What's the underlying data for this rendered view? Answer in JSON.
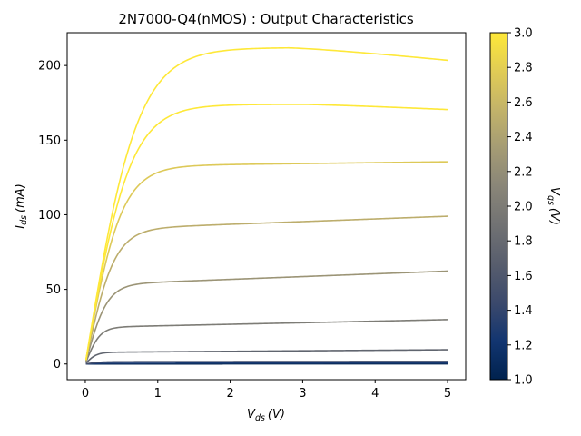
{
  "chart_data": {
    "type": "line",
    "title": "2N7000-Q4(nMOS) : Output Characteristics",
    "xlabel": {
      "base": "V",
      "sub": "ds",
      "unit": "(V)"
    },
    "ylabel": {
      "base": "I",
      "sub": "ds",
      "unit": "(mA)"
    },
    "xlim": [
      -0.25,
      5.25
    ],
    "ylim": [
      -10.5,
      222
    ],
    "xticks": [
      0,
      1,
      2,
      3,
      4,
      5
    ],
    "yticks": [
      0,
      50,
      100,
      150,
      200
    ],
    "grid": false,
    "colorbar": {
      "label": {
        "base": "V",
        "sub": "gs",
        "unit": "(V)"
      },
      "range": [
        1.0,
        3.0
      ],
      "ticks": [
        1.0,
        1.2,
        1.4,
        1.6,
        1.8,
        2.0,
        2.2,
        2.4,
        2.6,
        2.8,
        3.0
      ],
      "colormap": "cividis",
      "colors": [
        "#00224e",
        "#123570",
        "#3b496c",
        "#575d6d",
        "#707173",
        "#8a8678",
        "#a59c74",
        "#c3b369",
        "#e1cc55",
        "#fee838"
      ]
    },
    "series": [
      {
        "vgs": 1.0,
        "sat": 0.05,
        "knee": 0.2,
        "slope": 0.01,
        "drop": 0
      },
      {
        "vgs": 1.25,
        "sat": 0.5,
        "knee": 0.2,
        "slope": 0.03,
        "drop": 0
      },
      {
        "vgs": 1.5,
        "sat": 1.5,
        "knee": 0.2,
        "slope": 0.05,
        "drop": 0
      },
      {
        "vgs": 1.75,
        "sat": 7.8,
        "knee": 0.15,
        "slope": 0.35,
        "drop": 0
      },
      {
        "vgs": 2.0,
        "sat": 24.5,
        "knee": 0.2,
        "slope": 1.05,
        "drop": 0
      },
      {
        "vgs": 2.25,
        "sat": 53,
        "knee": 0.3,
        "slope": 1.85,
        "drop": 0
      },
      {
        "vgs": 2.5,
        "sat": 90,
        "knee": 0.4,
        "slope": 1.8,
        "drop": 0
      },
      {
        "vgs": 2.75,
        "sat": 132.5,
        "knee": 0.5,
        "slope": 0.6,
        "drop": 0
      },
      {
        "vgs": 3.0,
        "sat": 174,
        "knee": 0.62,
        "slope": 0,
        "drop": 3.5,
        "drop_start": 3.0
      },
      {
        "vgs": 3.25,
        "sat": 212,
        "knee": 0.72,
        "slope": 0,
        "drop": 8.5,
        "drop_start": 2.8
      }
    ]
  }
}
